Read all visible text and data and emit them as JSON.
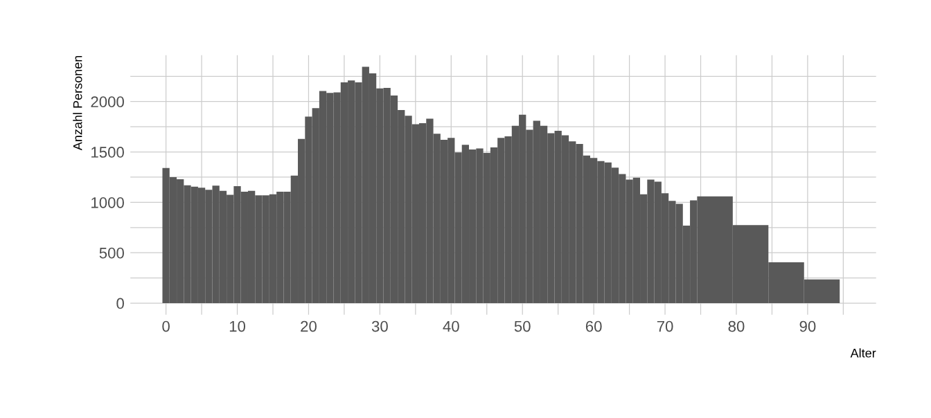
{
  "chart_data": {
    "type": "histogram",
    "xlabel": "Alter",
    "ylabel": "Anzahl Personen",
    "color": "#595959",
    "bins": [
      -0.5,
      0.5,
      1.5,
      2.5,
      3.5,
      4.5,
      5.5,
      6.5,
      7.5,
      8.5,
      9.5,
      10.5,
      11.5,
      12.5,
      13.5,
      14.5,
      15.5,
      16.5,
      17.5,
      18.5,
      19.5,
      20.5,
      21.5,
      22.5,
      23.5,
      24.5,
      25.5,
      26.5,
      27.5,
      28.5,
      29.5,
      30.5,
      31.5,
      32.5,
      33.5,
      34.5,
      35.5,
      36.5,
      37.5,
      38.5,
      39.5,
      40.5,
      41.5,
      42.5,
      43.5,
      44.5,
      45.5,
      46.5,
      47.5,
      48.5,
      49.5,
      50.5,
      51.5,
      52.5,
      53.5,
      54.5,
      55.5,
      56.5,
      57.5,
      58.5,
      59.5,
      60.5,
      61.5,
      62.5,
      63.5,
      64.5,
      65.5,
      66.5,
      67.5,
      68.5,
      69.5,
      70.5,
      71.5,
      72.5,
      73.5,
      74.5,
      79.5,
      84.5,
      89.5,
      94.5
    ],
    "values": [
      1340,
      1250,
      1230,
      1170,
      1155,
      1145,
      1125,
      1165,
      1115,
      1075,
      1160,
      1105,
      1115,
      1070,
      1070,
      1080,
      1105,
      1105,
      1265,
      1630,
      1850,
      1935,
      2105,
      2085,
      2090,
      2190,
      2210,
      2190,
      2345,
      2280,
      2130,
      2135,
      2060,
      1915,
      1860,
      1775,
      1785,
      1830,
      1680,
      1620,
      1640,
      1495,
      1570,
      1525,
      1535,
      1490,
      1545,
      1640,
      1655,
      1760,
      1870,
      1720,
      1810,
      1760,
      1685,
      1710,
      1665,
      1605,
      1580,
      1465,
      1440,
      1410,
      1395,
      1345,
      1280,
      1225,
      1245,
      1080,
      1225,
      1205,
      1090,
      1015,
      985,
      770,
      1020,
      1060,
      775,
      405,
      235
    ],
    "xlim": [
      -5,
      99.6
    ],
    "ylim": [
      -115,
      2460
    ],
    "xticks": [
      0,
      {
        "value": 5,
        "label": null
      },
      10,
      {
        "value": 15,
        "label": null
      },
      20,
      {
        "value": 25,
        "label": null
      },
      30,
      {
        "value": 35,
        "label": null
      },
      40,
      {
        "value": 45,
        "label": null
      },
      50,
      {
        "value": 55,
        "label": null
      },
      60,
      {
        "value": 65,
        "label": null
      },
      70,
      {
        "value": 75,
        "label": null
      },
      80,
      {
        "value": 85,
        "label": null
      },
      90,
      {
        "value": 95,
        "label": null
      }
    ],
    "yticks": [
      0,
      {
        "value": 250,
        "label": null
      },
      500,
      {
        "value": 750,
        "label": null
      },
      1000,
      {
        "value": 1250,
        "label": null
      },
      1500,
      {
        "value": 1750,
        "label": null
      },
      2000,
      {
        "value": 2250,
        "label": null
      }
    ],
    "grid": true
  }
}
